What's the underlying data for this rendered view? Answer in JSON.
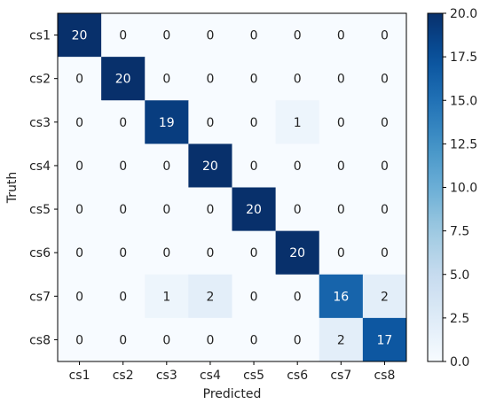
{
  "chart_data": {
    "type": "heatmap",
    "title": "",
    "xlabel": "Predicted",
    "ylabel": "Truth",
    "x_categories": [
      "cs1",
      "cs2",
      "cs3",
      "cs4",
      "cs5",
      "cs6",
      "cs7",
      "cs8"
    ],
    "y_categories": [
      "cs1",
      "cs2",
      "cs3",
      "cs4",
      "cs5",
      "cs6",
      "cs7",
      "cs8"
    ],
    "matrix": [
      [
        20,
        0,
        0,
        0,
        0,
        0,
        0,
        0
      ],
      [
        0,
        20,
        0,
        0,
        0,
        0,
        0,
        0
      ],
      [
        0,
        0,
        19,
        0,
        0,
        1,
        0,
        0
      ],
      [
        0,
        0,
        0,
        20,
        0,
        0,
        0,
        0
      ],
      [
        0,
        0,
        0,
        0,
        20,
        0,
        0,
        0
      ],
      [
        0,
        0,
        0,
        0,
        0,
        20,
        0,
        0
      ],
      [
        0,
        0,
        1,
        2,
        0,
        0,
        16,
        2
      ],
      [
        0,
        0,
        0,
        0,
        0,
        0,
        2,
        17
      ]
    ],
    "colormap": "Blues",
    "colorbar": {
      "range": [
        0.0,
        20.0
      ],
      "ticks": [
        "0.0",
        "2.5",
        "5.0",
        "7.5",
        "10.0",
        "12.5",
        "15.0",
        "17.5",
        "20.0"
      ]
    },
    "colors": {
      "low": "#f7fbff",
      "high": "#08306b",
      "text_dark": "#222222",
      "text_light": "#ffffff"
    }
  }
}
